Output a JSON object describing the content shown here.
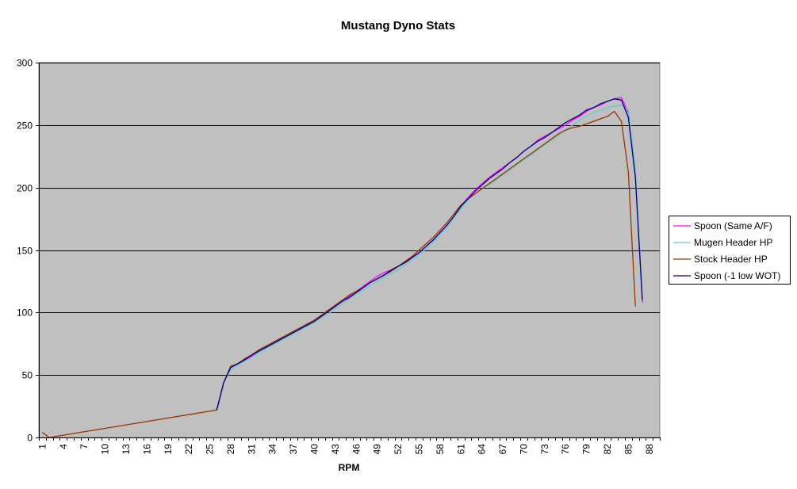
{
  "chart_data": {
    "type": "line",
    "title": "Mustang Dyno Stats",
    "xlabel": "RPM",
    "ylabel": "",
    "ylim": [
      0,
      300
    ],
    "yticks": [
      0,
      50,
      100,
      150,
      200,
      250,
      300
    ],
    "x_categories_count": 89,
    "x_tick_labels": [
      "1",
      "4",
      "7",
      "10",
      "13",
      "16",
      "19",
      "22",
      "25",
      "28",
      "31",
      "34",
      "37",
      "40",
      "43",
      "46",
      "49",
      "52",
      "55",
      "58",
      "61",
      "64",
      "67",
      "70",
      "73",
      "76",
      "79",
      "82",
      "85",
      "88"
    ],
    "grid": "horizontal",
    "plot_background": "#c0c0c0",
    "legend_position": "right",
    "series": [
      {
        "name": "Spoon (Same A/F)",
        "color": "#ff00ff",
        "points": [
          [
            26,
            22
          ],
          [
            27,
            44
          ],
          [
            28,
            56
          ],
          [
            29,
            59
          ],
          [
            30,
            62
          ],
          [
            31,
            65
          ],
          [
            32,
            69
          ],
          [
            33,
            72
          ],
          [
            34,
            75
          ],
          [
            35,
            78
          ],
          [
            36,
            81
          ],
          [
            37,
            84
          ],
          [
            38,
            87
          ],
          [
            39,
            90
          ],
          [
            40,
            93
          ],
          [
            41,
            97
          ],
          [
            42,
            101
          ],
          [
            43,
            105
          ],
          [
            44,
            109
          ],
          [
            45,
            113
          ],
          [
            46,
            117
          ],
          [
            47,
            121
          ],
          [
            48,
            125
          ],
          [
            49,
            129
          ],
          [
            50,
            132
          ],
          [
            51,
            134
          ],
          [
            52,
            137
          ],
          [
            53,
            140
          ],
          [
            54,
            144
          ],
          [
            55,
            148
          ],
          [
            56,
            153
          ],
          [
            57,
            158
          ],
          [
            58,
            164
          ],
          [
            59,
            170
          ],
          [
            60,
            177
          ],
          [
            61,
            185
          ],
          [
            62,
            192
          ],
          [
            63,
            198
          ],
          [
            64,
            203
          ],
          [
            65,
            208
          ],
          [
            66,
            212
          ],
          [
            67,
            216
          ],
          [
            68,
            220
          ],
          [
            69,
            224
          ],
          [
            70,
            229
          ],
          [
            71,
            233
          ],
          [
            72,
            238
          ],
          [
            73,
            241
          ],
          [
            74,
            244
          ],
          [
            75,
            247
          ],
          [
            76,
            250
          ],
          [
            77,
            254
          ],
          [
            78,
            257
          ],
          [
            79,
            261
          ],
          [
            80,
            264
          ],
          [
            81,
            266
          ],
          [
            82,
            269
          ],
          [
            83,
            271
          ],
          [
            84,
            272
          ],
          [
            85,
            260
          ],
          [
            86,
            214
          ],
          [
            87,
            108
          ]
        ]
      },
      {
        "name": "Mugen Header HP",
        "color": "#66cccc",
        "points": [
          [
            26,
            22
          ],
          [
            27,
            44
          ],
          [
            28,
            54
          ],
          [
            29,
            58
          ],
          [
            30,
            61
          ],
          [
            31,
            64
          ],
          [
            32,
            68
          ],
          [
            33,
            71
          ],
          [
            34,
            74
          ],
          [
            35,
            77
          ],
          [
            36,
            80
          ],
          [
            37,
            83
          ],
          [
            38,
            86
          ],
          [
            39,
            89
          ],
          [
            40,
            92
          ],
          [
            41,
            96
          ],
          [
            42,
            99
          ],
          [
            43,
            103
          ],
          [
            44,
            107
          ],
          [
            45,
            111
          ],
          [
            46,
            115
          ],
          [
            47,
            118
          ],
          [
            48,
            122
          ],
          [
            49,
            125
          ],
          [
            50,
            128
          ],
          [
            51,
            131
          ],
          [
            52,
            134
          ],
          [
            53,
            138
          ],
          [
            54,
            142
          ],
          [
            55,
            146
          ],
          [
            56,
            151
          ],
          [
            57,
            156
          ],
          [
            58,
            162
          ],
          [
            59,
            168
          ],
          [
            60,
            176
          ],
          [
            61,
            183
          ],
          [
            62,
            190
          ],
          [
            63,
            195
          ],
          [
            64,
            199
          ],
          [
            65,
            202
          ],
          [
            66,
            206
          ],
          [
            67,
            210
          ],
          [
            68,
            214
          ],
          [
            69,
            218
          ],
          [
            70,
            222
          ],
          [
            71,
            226
          ],
          [
            72,
            230
          ],
          [
            73,
            234
          ],
          [
            74,
            238
          ],
          [
            75,
            242
          ],
          [
            76,
            246
          ],
          [
            77,
            250
          ],
          [
            78,
            254
          ],
          [
            79,
            257
          ],
          [
            80,
            260
          ],
          [
            81,
            262
          ],
          [
            82,
            264
          ],
          [
            83,
            265
          ],
          [
            84,
            266
          ],
          [
            85,
            262
          ],
          [
            86,
            215
          ],
          [
            87,
            110
          ]
        ]
      },
      {
        "name": "Stock Header HP",
        "color": "#993300",
        "points": [
          [
            1,
            4
          ],
          [
            2,
            0
          ],
          [
            26,
            22
          ],
          [
            27,
            44
          ],
          [
            28,
            57
          ],
          [
            29,
            59
          ],
          [
            30,
            63
          ],
          [
            31,
            66
          ],
          [
            32,
            70
          ],
          [
            33,
            73
          ],
          [
            34,
            76
          ],
          [
            35,
            79
          ],
          [
            36,
            82
          ],
          [
            37,
            85
          ],
          [
            38,
            88
          ],
          [
            39,
            91
          ],
          [
            40,
            94
          ],
          [
            41,
            98
          ],
          [
            42,
            102
          ],
          [
            43,
            106
          ],
          [
            44,
            110
          ],
          [
            45,
            114
          ],
          [
            46,
            117
          ],
          [
            47,
            120
          ],
          [
            48,
            124
          ],
          [
            49,
            127
          ],
          [
            50,
            130
          ],
          [
            51,
            133
          ],
          [
            52,
            137
          ],
          [
            53,
            141
          ],
          [
            54,
            145
          ],
          [
            55,
            150
          ],
          [
            56,
            155
          ],
          [
            57,
            160
          ],
          [
            58,
            166
          ],
          [
            59,
            172
          ],
          [
            60,
            179
          ],
          [
            61,
            186
          ],
          [
            62,
            191
          ],
          [
            63,
            195
          ],
          [
            64,
            199
          ],
          [
            65,
            203
          ],
          [
            66,
            207
          ],
          [
            67,
            211
          ],
          [
            68,
            215
          ],
          [
            69,
            219
          ],
          [
            70,
            223
          ],
          [
            71,
            227
          ],
          [
            72,
            231
          ],
          [
            73,
            235
          ],
          [
            74,
            239
          ],
          [
            75,
            243
          ],
          [
            76,
            246
          ],
          [
            77,
            248
          ],
          [
            78,
            249
          ],
          [
            79,
            251
          ],
          [
            80,
            253
          ],
          [
            81,
            255
          ],
          [
            82,
            257
          ],
          [
            83,
            261
          ],
          [
            84,
            253
          ],
          [
            85,
            212
          ],
          [
            86,
            105
          ]
        ]
      },
      {
        "name": "Spoon (-1 low WOT)",
        "color": "#000080",
        "points": [
          [
            26,
            22
          ],
          [
            27,
            44
          ],
          [
            28,
            56
          ],
          [
            29,
            59
          ],
          [
            30,
            62
          ],
          [
            31,
            66
          ],
          [
            32,
            69
          ],
          [
            33,
            72
          ],
          [
            34,
            75
          ],
          [
            35,
            78
          ],
          [
            36,
            81
          ],
          [
            37,
            84
          ],
          [
            38,
            87
          ],
          [
            39,
            90
          ],
          [
            40,
            93
          ],
          [
            41,
            97
          ],
          [
            42,
            101
          ],
          [
            43,
            105
          ],
          [
            44,
            109
          ],
          [
            45,
            112
          ],
          [
            46,
            116
          ],
          [
            47,
            120
          ],
          [
            48,
            124
          ],
          [
            49,
            127
          ],
          [
            50,
            130
          ],
          [
            51,
            134
          ],
          [
            52,
            137
          ],
          [
            53,
            140
          ],
          [
            54,
            144
          ],
          [
            55,
            148
          ],
          [
            56,
            153
          ],
          [
            57,
            158
          ],
          [
            58,
            164
          ],
          [
            59,
            170
          ],
          [
            60,
            177
          ],
          [
            61,
            185
          ],
          [
            62,
            191
          ],
          [
            63,
            197
          ],
          [
            64,
            202
          ],
          [
            65,
            207
          ],
          [
            66,
            211
          ],
          [
            67,
            215
          ],
          [
            68,
            220
          ],
          [
            69,
            224
          ],
          [
            70,
            229
          ],
          [
            71,
            233
          ],
          [
            72,
            237
          ],
          [
            73,
            240
          ],
          [
            74,
            244
          ],
          [
            75,
            248
          ],
          [
            76,
            252
          ],
          [
            77,
            255
          ],
          [
            78,
            258
          ],
          [
            79,
            262
          ],
          [
            80,
            264
          ],
          [
            81,
            267
          ],
          [
            82,
            269
          ],
          [
            83,
            271
          ],
          [
            84,
            270
          ],
          [
            85,
            256
          ],
          [
            86,
            208
          ],
          [
            87,
            110
          ]
        ]
      }
    ]
  }
}
